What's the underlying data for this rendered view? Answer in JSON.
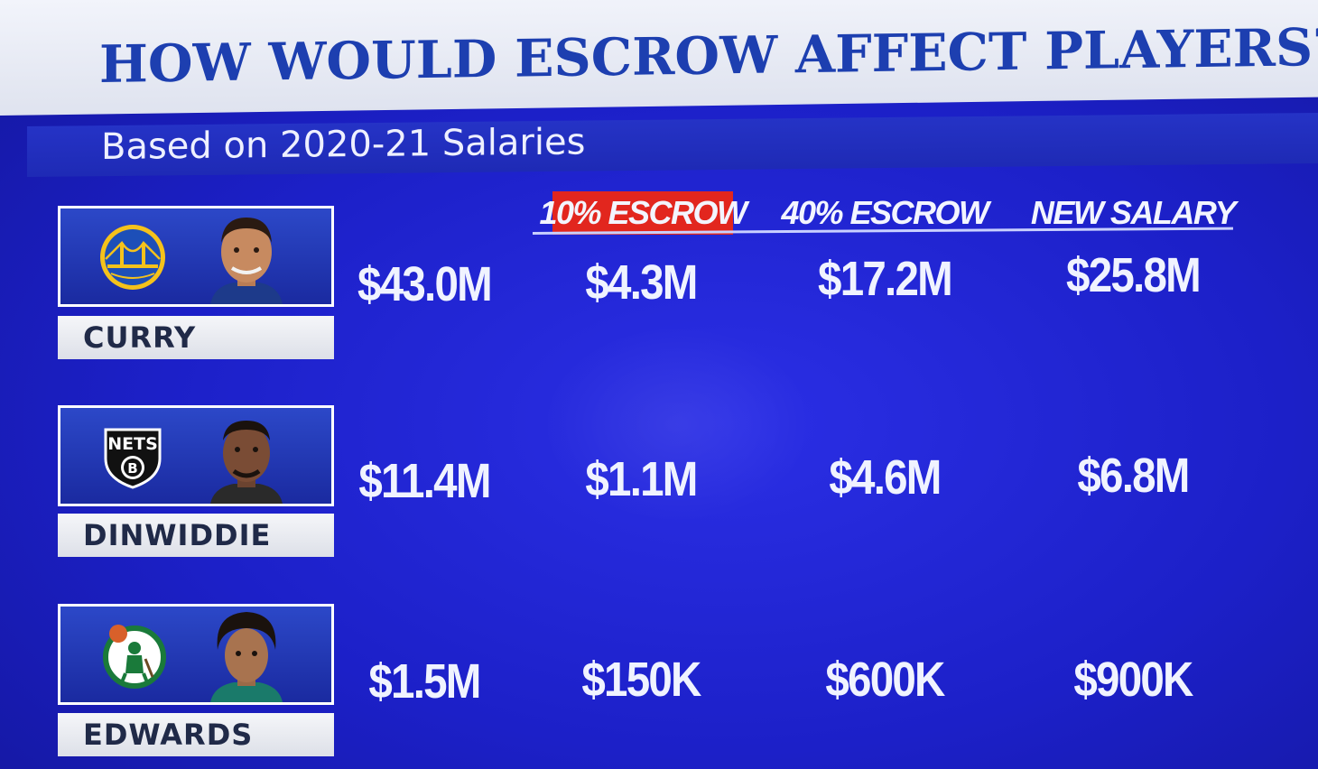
{
  "title": "HOW WOULD ESCROW AFFECT PLAYERS?",
  "subtitle": "Based on 2020-21 Salaries",
  "columns": [
    "10% ESCROW",
    "40% ESCROW",
    "NEW SALARY"
  ],
  "colors": {
    "background": "#1c20c8",
    "title_text": "#1d3fb0",
    "highlight": "#e2261e"
  },
  "players": [
    {
      "name": "CURRY",
      "logo": "warriors-logo-icon",
      "salary": "$43.0M",
      "escrow_10": "$4.3M",
      "escrow_40": "$17.2M",
      "new_salary": "$25.8M"
    },
    {
      "name": "DINWIDDIE",
      "logo": "nets-logo-icon",
      "logo_text": "NETS",
      "salary": "$11.4M",
      "escrow_10": "$1.1M",
      "escrow_40": "$4.6M",
      "new_salary": "$6.8M"
    },
    {
      "name": "EDWARDS",
      "logo": "celtics-logo-icon",
      "salary": "$1.5M",
      "escrow_10": "$150K",
      "escrow_40": "$600K",
      "new_salary": "$900K"
    }
  ]
}
